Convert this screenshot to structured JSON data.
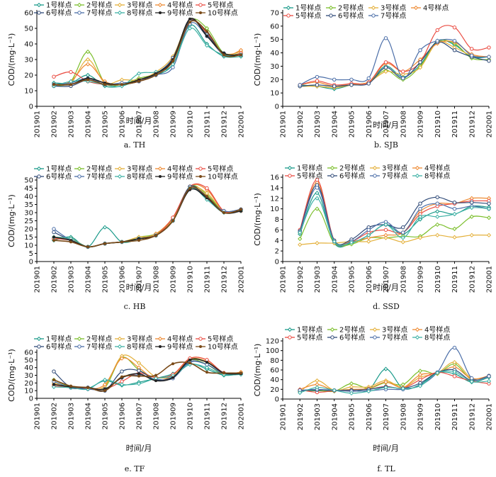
{
  "colors": {
    "s1": "#1a9a8a",
    "s2": "#7cbf2c",
    "s3": "#e4b03a",
    "s4": "#ee8a32",
    "s5": "#ea4c42",
    "s6": "#2f4a78",
    "s7": "#4b6ea8",
    "s8": "#3fb2a6",
    "s9": "#222222",
    "s10": "#7a4a18"
  },
  "xlabel": "时间/月",
  "ylabel": "COD/(mg·L⁻¹)",
  "chart_data": [
    {
      "type": "line",
      "caption": "a.  TH",
      "categories": [
        "201901",
        "201902",
        "201903",
        "201904",
        "201905",
        "201906",
        "201907",
        "201908",
        "201909",
        "201910",
        "201911",
        "201912",
        "202001"
      ],
      "ylim": [
        0,
        60
      ],
      "yticks": [
        0,
        10,
        20,
        30,
        40,
        50,
        60
      ],
      "series": [
        {
          "name": "1号样点",
          "values": [
            null,
            15,
            15,
            20,
            13,
            13,
            17,
            20,
            27,
            52,
            40,
            32,
            32
          ]
        },
        {
          "name": "2号样点",
          "values": [
            null,
            13,
            16,
            35,
            15,
            14,
            18,
            21,
            30,
            55,
            50,
            34,
            34
          ]
        },
        {
          "name": "3号样点",
          "values": [
            null,
            14,
            15,
            30,
            15,
            17,
            17,
            22,
            32,
            55,
            46,
            34,
            35
          ]
        },
        {
          "name": "4号样点",
          "values": [
            null,
            13,
            16,
            27,
            16,
            14,
            17,
            21,
            29,
            55,
            47,
            33,
            36
          ]
        },
        {
          "name": "5号样点",
          "values": [
            null,
            19,
            22,
            16,
            14,
            14,
            16,
            21,
            30,
            55,
            47,
            33,
            34
          ]
        },
        {
          "name": "6号样点",
          "values": [
            null,
            13,
            13,
            17,
            14,
            14,
            16,
            21,
            31,
            55,
            46,
            34,
            33
          ]
        },
        {
          "name": "7号样点",
          "values": [
            null,
            14,
            15,
            18,
            14,
            15,
            16,
            20,
            25,
            53,
            45,
            33,
            33
          ]
        },
        {
          "name": "8号样点",
          "values": [
            null,
            13,
            16,
            16,
            14,
            13,
            21,
            22,
            27,
            50,
            39,
            33,
            33
          ]
        },
        {
          "name": "9号样点",
          "values": [
            null,
            14,
            14,
            18,
            15,
            14,
            17,
            21,
            30,
            56,
            45,
            34,
            33
          ]
        },
        {
          "name": "10号样点",
          "values": [
            null,
            14,
            14,
            17,
            14,
            14,
            16,
            20,
            29,
            54,
            48,
            33,
            33
          ]
        }
      ]
    },
    {
      "type": "line",
      "caption": "b.  SJB",
      "categories": [
        "201901",
        "201902",
        "201903",
        "201904",
        "201905",
        "201906",
        "201907",
        "201908",
        "201909",
        "201910",
        "201911",
        "201912",
        "202001"
      ],
      "ylim": [
        0,
        70
      ],
      "yticks": [
        0,
        10,
        20,
        30,
        40,
        50,
        60,
        70
      ],
      "series": [
        {
          "name": "1号样点",
          "values": [
            null,
            16,
            15,
            13,
            16,
            18,
            30,
            22,
            31,
            49,
            46,
            37,
            37
          ]
        },
        {
          "name": "2号样点",
          "values": [
            null,
            15,
            15,
            14,
            16,
            18,
            27,
            20,
            30,
            48,
            47,
            36,
            35
          ]
        },
        {
          "name": "3号样点",
          "values": [
            null,
            15,
            15,
            14,
            16,
            18,
            26,
            24,
            29,
            48,
            44,
            38,
            37
          ]
        },
        {
          "name": "4号样点",
          "values": [
            null,
            16,
            18,
            15,
            17,
            18,
            32,
            26,
            35,
            47,
            48,
            39,
            37
          ]
        },
        {
          "name": "5号样点",
          "values": [
            null,
            16,
            19,
            16,
            17,
            18,
            33,
            26,
            33,
            57,
            59,
            43,
            44
          ]
        },
        {
          "name": "6号样点",
          "values": [
            null,
            15,
            16,
            15,
            16,
            17,
            29,
            21,
            33,
            48,
            42,
            37,
            34
          ]
        },
        {
          "name": "7号样点",
          "values": [
            null,
            16,
            22,
            20,
            20,
            21,
            51,
            21,
            42,
            49,
            49,
            38,
            37
          ]
        }
      ]
    },
    {
      "type": "line",
      "caption": "c.  HB",
      "categories": [
        "201901",
        "201902",
        "201903",
        "201904",
        "201905",
        "201906",
        "201907",
        "201908",
        "201909",
        "201910",
        "201911",
        "201912",
        "202001"
      ],
      "ylim": [
        0,
        50
      ],
      "yticks": [
        0,
        5,
        10,
        15,
        20,
        25,
        30,
        35,
        40,
        45,
        50
      ],
      "series": [
        {
          "name": "1号样点",
          "values": [
            null,
            13,
            15,
            9,
            21,
            12,
            14,
            17,
            26,
            45,
            40,
            31,
            32
          ]
        },
        {
          "name": "2号样点",
          "values": [
            null,
            14,
            14,
            9,
            11,
            12,
            15,
            17,
            25,
            46,
            41,
            31,
            31
          ]
        },
        {
          "name": "3号样点",
          "values": [
            null,
            15,
            14,
            9,
            11,
            12,
            15,
            16,
            26,
            45,
            42,
            31,
            32
          ]
        },
        {
          "name": "4号样点",
          "values": [
            null,
            14,
            14,
            9,
            11,
            12,
            14,
            17,
            27,
            46,
            44,
            31,
            32
          ]
        },
        {
          "name": "5号样点",
          "values": [
            null,
            14,
            13,
            9,
            11,
            12,
            14,
            16,
            27,
            46,
            45,
            31,
            31
          ]
        },
        {
          "name": "6号样点",
          "values": [
            null,
            18,
            13,
            9,
            11,
            12,
            14,
            16,
            25,
            46,
            39,
            31,
            32
          ]
        },
        {
          "name": "7号样点",
          "values": [
            null,
            20,
            13,
            9,
            11,
            12,
            14,
            16,
            25,
            45,
            39,
            31,
            32
          ]
        },
        {
          "name": "8号样点",
          "values": [
            null,
            15,
            14,
            9,
            11,
            12,
            14,
            16,
            25,
            45,
            38,
            30,
            31
          ]
        },
        {
          "name": "9号样点",
          "values": [
            null,
            15,
            13,
            9,
            11,
            12,
            14,
            16,
            25,
            44,
            39,
            30,
            31
          ]
        },
        {
          "name": "10号样点",
          "values": [
            null,
            13,
            12,
            9,
            11,
            12,
            13,
            16,
            25,
            45,
            40,
            30,
            32
          ]
        }
      ]
    },
    {
      "type": "line",
      "caption": "d.  SSD",
      "categories": [
        "201901",
        "201902",
        "201903",
        "201904",
        "201905",
        "201906",
        "201907",
        "201908",
        "201909",
        "201910",
        "201911",
        "201912",
        "202001"
      ],
      "ylim": [
        0,
        16
      ],
      "yticks": [
        0,
        2,
        4,
        6,
        8,
        10,
        12,
        14,
        16
      ],
      "series": [
        {
          "name": "1号样点",
          "values": [
            null,
            5.2,
            13.0,
            3.5,
            3.5,
            5.0,
            7.0,
            5.2,
            8.0,
            9.5,
            9.0,
            10.5,
            10.3
          ]
        },
        {
          "name": "2号样点",
          "values": [
            null,
            4.3,
            10.0,
            3.5,
            3.3,
            4.5,
            4.5,
            4.8,
            4.8,
            7.0,
            6.2,
            8.5,
            8.3
          ]
        },
        {
          "name": "3号样点",
          "values": [
            null,
            3.2,
            3.5,
            3.5,
            3.8,
            3.8,
            4.5,
            3.7,
            4.5,
            5.0,
            4.6,
            5.0,
            5.0
          ]
        },
        {
          "name": "4号样点",
          "values": [
            null,
            5.5,
            15.0,
            4.0,
            3.8,
            4.5,
            5.0,
            5.5,
            9.5,
            11.0,
            11.0,
            12.0,
            12.0
          ]
        },
        {
          "name": "5号样点",
          "values": [
            null,
            6.0,
            15.5,
            4.0,
            3.8,
            5.5,
            6.0,
            5.5,
            9.0,
            10.5,
            11.0,
            11.5,
            11.5
          ]
        },
        {
          "name": "6号样点",
          "values": [
            null,
            5.8,
            14.5,
            4.0,
            4.2,
            6.5,
            7.0,
            6.5,
            11.0,
            12.2,
            11.2,
            11.2,
            11.0
          ]
        },
        {
          "name": "7号样点",
          "values": [
            null,
            5.6,
            14.0,
            3.8,
            3.8,
            6.0,
            7.5,
            5.5,
            10.0,
            11.0,
            10.0,
            10.5,
            10.0
          ]
        },
        {
          "name": "8号样点",
          "values": [
            null,
            5.5,
            12.0,
            3.8,
            3.6,
            5.0,
            7.0,
            4.5,
            8.5,
            8.5,
            9.0,
            10.2,
            10.0
          ]
        }
      ]
    },
    {
      "type": "line",
      "caption": "e.  TF",
      "categories": [
        "201901",
        "201902",
        "201903",
        "201904",
        "201905",
        "201906",
        "201907",
        "201908",
        "201909",
        "201910",
        "201911",
        "201912",
        "202001"
      ],
      "ylim": [
        0,
        60
      ],
      "yticks": [
        0,
        10,
        20,
        30,
        40,
        50,
        60
      ],
      "series": [
        {
          "name": "1号样点",
          "values": [
            null,
            15,
            14,
            13,
            23,
            17,
            21,
            26,
            32,
            45,
            38,
            30,
            32
          ]
        },
        {
          "name": "2号样点",
          "values": [
            null,
            24,
            15,
            14,
            14,
            53,
            37,
            27,
            30,
            50,
            44,
            31,
            33
          ]
        },
        {
          "name": "3号样点",
          "values": [
            null,
            20,
            14,
            12,
            16,
            55,
            46,
            28,
            30,
            51,
            48,
            33,
            34
          ]
        },
        {
          "name": "4号样点",
          "values": [
            null,
            18,
            15,
            12,
            18,
            52,
            40,
            24,
            30,
            52,
            50,
            33,
            34
          ]
        },
        {
          "name": "5号样点",
          "values": [
            null,
            16,
            14,
            13,
            12,
            22,
            33,
            27,
            31,
            52,
            50,
            33,
            32
          ]
        },
        {
          "name": "6号样点",
          "values": [
            null,
            35,
            14,
            14,
            10,
            35,
            36,
            24,
            28,
            48,
            44,
            32,
            32
          ]
        },
        {
          "name": "7号样点",
          "values": [
            null,
            22,
            14,
            12,
            12,
            27,
            30,
            25,
            26,
            47,
            44,
            32,
            32
          ]
        },
        {
          "name": "8号样点",
          "values": [
            null,
            15,
            14,
            12,
            24,
            18,
            19,
            26,
            29,
            44,
            40,
            31,
            31
          ]
        },
        {
          "name": "9号样点",
          "values": [
            null,
            18,
            15,
            14,
            12,
            27,
            32,
            23,
            27,
            50,
            47,
            33,
            32
          ]
        },
        {
          "name": "10号样点",
          "values": [
            null,
            24,
            16,
            14,
            10,
            28,
            29,
            30,
            45,
            46,
            34,
            33,
            33
          ]
        }
      ]
    },
    {
      "type": "line",
      "caption": "f.  TL",
      "categories": [
        "201901",
        "201902",
        "201903",
        "201904",
        "201905",
        "201906",
        "201907",
        "201908",
        "201909",
        "201910",
        "201911",
        "201912",
        "202001"
      ],
      "ylim": [
        0,
        120
      ],
      "yticks": [
        0,
        20,
        40,
        60,
        80,
        100,
        120
      ],
      "series": [
        {
          "name": "1号样点",
          "values": [
            null,
            18,
            17,
            17,
            20,
            19,
            62,
            22,
            30,
            54,
            52,
            35,
            45
          ]
        },
        {
          "name": "2号样点",
          "values": [
            null,
            17,
            18,
            16,
            32,
            22,
            34,
            30,
            58,
            52,
            72,
            40,
            47
          ]
        },
        {
          "name": "3号样点",
          "values": [
            null,
            15,
            38,
            18,
            25,
            25,
            38,
            24,
            45,
            53,
            76,
            43,
            47
          ]
        },
        {
          "name": "4号样点",
          "values": [
            null,
            20,
            30,
            18,
            20,
            22,
            35,
            24,
            50,
            53,
            66,
            42,
            48
          ]
        },
        {
          "name": "5号样点",
          "values": [
            null,
            19,
            14,
            17,
            18,
            20,
            26,
            22,
            40,
            55,
            47,
            37,
            32
          ]
        },
        {
          "name": "6号样点",
          "values": [
            null,
            17,
            19,
            18,
            18,
            20,
            25,
            22,
            33,
            55,
            60,
            38,
            48
          ]
        },
        {
          "name": "7号样点",
          "values": [
            null,
            18,
            20,
            18,
            16,
            17,
            20,
            20,
            28,
            55,
            106,
            43,
            47
          ]
        },
        {
          "name": "8号样点",
          "values": [
            null,
            13,
            24,
            18,
            12,
            16,
            24,
            22,
            27,
            54,
            56,
            36,
            37
          ]
        }
      ]
    }
  ]
}
